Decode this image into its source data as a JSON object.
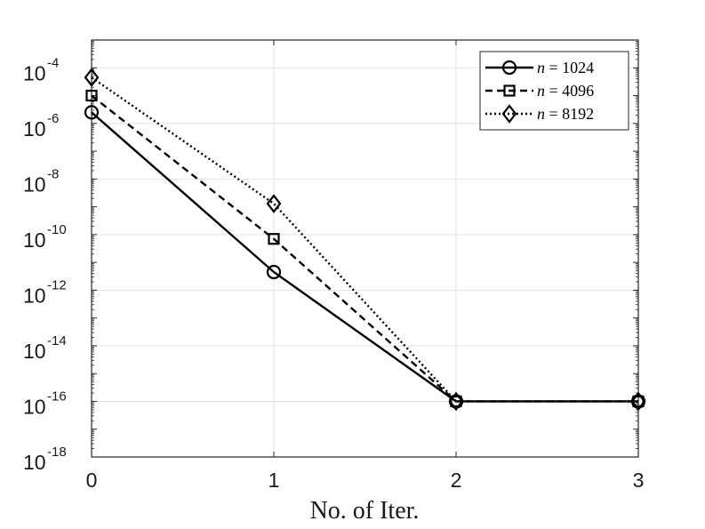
{
  "chart_data": {
    "type": "line",
    "xlabel": "No. of Iter.",
    "ylabel": "",
    "x": [
      0,
      1,
      2,
      3
    ],
    "xticks": [
      0,
      1,
      2,
      3
    ],
    "xlim": [
      0,
      3
    ],
    "yscale": "log",
    "ylim": [
      1e-18,
      0.001
    ],
    "yticks": [
      {
        "value": 1e-18,
        "base": "10",
        "exp": "-18"
      },
      {
        "value": 1e-16,
        "base": "10",
        "exp": "-16"
      },
      {
        "value": 1e-14,
        "base": "10",
        "exp": "-14"
      },
      {
        "value": 1e-12,
        "base": "10",
        "exp": "-12"
      },
      {
        "value": 1e-10,
        "base": "10",
        "exp": "-10"
      },
      {
        "value": 1e-08,
        "base": "10",
        "exp": "-8"
      },
      {
        "value": 1e-06,
        "base": "10",
        "exp": "-6"
      },
      {
        "value": 0.0001,
        "base": "10",
        "exp": "-4"
      }
    ],
    "grid": true,
    "legend_position": "top-right",
    "series": [
      {
        "name": "n = 1024",
        "name_var": "n",
        "name_rest": " = 1024",
        "values": [
          2.5e-06,
          4.5e-12,
          1e-16,
          1e-16
        ],
        "marker": "circle",
        "dash": "solid",
        "color": "#000000"
      },
      {
        "name": "n = 4096",
        "name_var": "n",
        "name_rest": " = 4096",
        "values": [
          1e-05,
          7e-11,
          1e-16,
          1e-16
        ],
        "marker": "square",
        "dash": "dashed",
        "color": "#000000"
      },
      {
        "name": "n = 8192",
        "name_var": "n",
        "name_rest": " = 8192",
        "values": [
          4.5e-05,
          1.3e-09,
          1e-16,
          1e-16
        ],
        "marker": "diamond",
        "dash": "dotted",
        "color": "#000000"
      }
    ]
  }
}
